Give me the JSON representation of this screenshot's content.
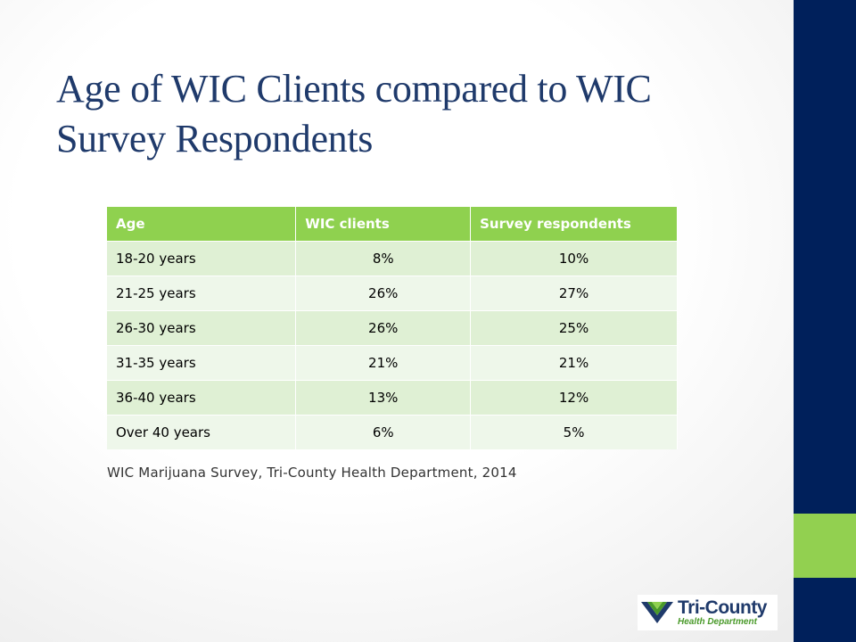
{
  "slide": {
    "title": "Age of WIC Clients compared to WIC Survey Respondents",
    "source_note": "WIC Marijuana Survey, Tri-County Health Department, 2014"
  },
  "table": {
    "headers": [
      "Age",
      "WIC clients",
      "Survey respondents"
    ],
    "rows": [
      [
        "18-20 years",
        "8%",
        "10%"
      ],
      [
        "21-25 years",
        "26%",
        "27%"
      ],
      [
        "26-30 years",
        "26%",
        "25%"
      ],
      [
        "31-35 years",
        "21%",
        "21%"
      ],
      [
        "36-40 years",
        "13%",
        "12%"
      ],
      [
        "Over 40 years",
        "6%",
        "5%"
      ]
    ]
  },
  "logo": {
    "name": "Tri-County",
    "subtitle": "Health Department",
    "icon": "tri-county-chevron-logo"
  },
  "colors": {
    "title": "#1f3a6b",
    "sidebar_blue": "#00205b",
    "sidebar_green": "#92d050",
    "table_header": "#8fd14f",
    "table_row_dark": "#dff0d4",
    "table_row_light": "#eef7ea"
  }
}
